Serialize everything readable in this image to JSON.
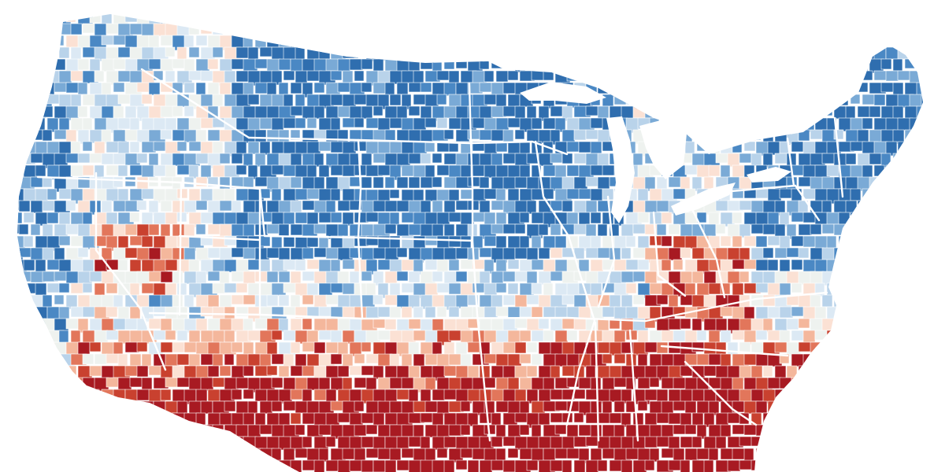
{
  "map": {
    "type": "choropleth",
    "region": "contiguous-united-states",
    "unit": "county",
    "labels_shown": false,
    "legend_shown": false,
    "palette": {
      "strong_blue": "#2f6eaf",
      "blue": "#4a88c4",
      "mid_blue": "#7aaad6",
      "light_blue": "#b9d3ea",
      "pale_blue": "#dce9f4",
      "neutral": "#eef2ef",
      "pale_red": "#fbe1d4",
      "light_red": "#f4b79c",
      "red": "#e2765b",
      "strong_red": "#c9412f",
      "dark_red": "#a81a22"
    },
    "regional_tendency": [
      {
        "region": "pacific-coast",
        "color": "blue"
      },
      {
        "region": "great-basin",
        "color": "mixed"
      },
      {
        "region": "northern-rockies",
        "color": "blue"
      },
      {
        "region": "northern-plains",
        "color": "strong_blue"
      },
      {
        "region": "upper-midwest",
        "color": "strong_blue"
      },
      {
        "region": "northeast",
        "color": "blue"
      },
      {
        "region": "southern-plains",
        "color": "red"
      },
      {
        "region": "lower-mississippi",
        "color": "strong_red"
      },
      {
        "region": "deep-south",
        "color": "strong_red"
      },
      {
        "region": "appalachia",
        "color": "strong_red"
      },
      {
        "region": "southwest",
        "color": "mixed"
      }
    ]
  }
}
